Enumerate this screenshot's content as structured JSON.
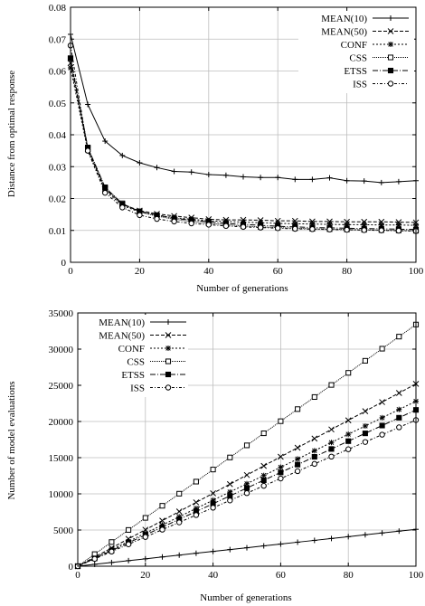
{
  "chart_data": [
    {
      "type": "line",
      "title": "",
      "xlabel": "Number of generations",
      "ylabel": "Distance from optimal response",
      "xlim": [
        0,
        100
      ],
      "ylim": [
        0,
        0.08
      ],
      "x_ticks": [
        "0",
        "20",
        "40",
        "60",
        "80",
        "100"
      ],
      "y_ticks": [
        "0",
        "0.01",
        "0.02",
        "0.03",
        "0.04",
        "0.05",
        "0.06",
        "0.07",
        "0.08"
      ],
      "grid": true,
      "legend_position": "top-right",
      "x": [
        0,
        5,
        10,
        15,
        20,
        25,
        30,
        35,
        40,
        45,
        50,
        55,
        60,
        65,
        70,
        75,
        80,
        85,
        90,
        95,
        100
      ],
      "series": [
        {
          "name": "MEAN(10)",
          "marker": "plus",
          "dash": "",
          "values": [
            0.0715,
            0.0495,
            0.038,
            0.0335,
            0.0312,
            0.0297,
            0.0285,
            0.0283,
            0.0275,
            0.0273,
            0.0268,
            0.0266,
            0.0266,
            0.026,
            0.026,
            0.0265,
            0.0256,
            0.0255,
            0.025,
            0.0253,
            0.0256
          ]
        },
        {
          "name": "MEAN(50)",
          "marker": "x",
          "dash": "4,2",
          "values": [
            0.0625,
            0.0355,
            0.023,
            0.0182,
            0.0162,
            0.0152,
            0.0145,
            0.014,
            0.0135,
            0.0133,
            0.0133,
            0.0132,
            0.013,
            0.013,
            0.0128,
            0.0128,
            0.0127,
            0.0127,
            0.0127,
            0.0126,
            0.0125
          ]
        },
        {
          "name": "CONF",
          "marker": "star",
          "dash": "2,2",
          "values": [
            0.061,
            0.035,
            0.0225,
            0.0178,
            0.0158,
            0.0148,
            0.014,
            0.0135,
            0.013,
            0.0128,
            0.0126,
            0.0124,
            0.0122,
            0.0121,
            0.012,
            0.0119,
            0.0118,
            0.0118,
            0.0117,
            0.0117,
            0.0116
          ]
        },
        {
          "name": "CSS",
          "marker": "square",
          "dash": "1,1",
          "values": [
            0.064,
            0.036,
            0.0235,
            0.0185,
            0.0158,
            0.0145,
            0.0135,
            0.0128,
            0.0122,
            0.0118,
            0.0114,
            0.0111,
            0.0109,
            0.0107,
            0.0105,
            0.0104,
            0.0103,
            0.0102,
            0.0101,
            0.01,
            0.0099
          ]
        },
        {
          "name": "ETSS",
          "marker": "filled-square",
          "dash": "6,2,1,2",
          "values": [
            0.064,
            0.036,
            0.0235,
            0.0182,
            0.016,
            0.0148,
            0.0138,
            0.0132,
            0.0127,
            0.0122,
            0.0119,
            0.0116,
            0.0113,
            0.0111,
            0.0109,
            0.0108,
            0.0107,
            0.0106,
            0.0105,
            0.0104,
            0.0103
          ]
        },
        {
          "name": "ISS",
          "marker": "circle",
          "dash": "3,2,1,2",
          "values": [
            0.068,
            0.035,
            0.0218,
            0.0172,
            0.0148,
            0.0136,
            0.0128,
            0.0122,
            0.0118,
            0.0114,
            0.0111,
            0.0109,
            0.0107,
            0.0105,
            0.0104,
            0.0103,
            0.0102,
            0.0101,
            0.01,
            0.0099,
            0.0098
          ]
        }
      ]
    },
    {
      "type": "line",
      "title": "",
      "xlabel": "Number of generations",
      "ylabel": "Number of model evaluations",
      "xlim": [
        0,
        100
      ],
      "ylim": [
        0,
        35000
      ],
      "x_ticks": [
        "0",
        "20",
        "40",
        "60",
        "80",
        "100"
      ],
      "y_ticks": [
        "0",
        "5000",
        "10000",
        "15000",
        "20000",
        "25000",
        "30000",
        "35000"
      ],
      "grid": true,
      "legend_position": "top-left",
      "x": [
        0,
        5,
        10,
        15,
        20,
        25,
        30,
        35,
        40,
        45,
        50,
        55,
        60,
        65,
        70,
        75,
        80,
        85,
        90,
        95,
        100
      ],
      "series": [
        {
          "name": "MEAN(10)",
          "marker": "plus",
          "dash": "",
          "values": [
            0,
            260,
            510,
            770,
            1020,
            1280,
            1530,
            1790,
            2040,
            2300,
            2550,
            2810,
            3060,
            3320,
            3570,
            3830,
            4080,
            4340,
            4590,
            4850,
            5100
          ]
        },
        {
          "name": "MEAN(50)",
          "marker": "x",
          "dash": "4,2",
          "values": [
            0,
            1260,
            2520,
            3780,
            5040,
            6300,
            7560,
            8820,
            10080,
            11340,
            12600,
            13860,
            15120,
            16380,
            17640,
            18900,
            20160,
            21420,
            22680,
            23940,
            25200
          ]
        },
        {
          "name": "CONF",
          "marker": "star",
          "dash": "2,2",
          "values": [
            0,
            1140,
            2280,
            3420,
            4560,
            5700,
            6840,
            7980,
            9120,
            10260,
            11400,
            12540,
            13680,
            14820,
            15960,
            17100,
            18240,
            19380,
            20520,
            21660,
            22800
          ]
        },
        {
          "name": "CSS",
          "marker": "square",
          "dash": "1,1",
          "values": [
            0,
            1670,
            3340,
            5010,
            6680,
            8350,
            10020,
            11690,
            13360,
            15030,
            16700,
            18370,
            20040,
            21710,
            23380,
            25050,
            26720,
            28390,
            30060,
            31730,
            33400
          ]
        },
        {
          "name": "ETSS",
          "marker": "filled-square",
          "dash": "6,2,1,2",
          "values": [
            0,
            1080,
            2160,
            3240,
            4320,
            5400,
            6480,
            7560,
            8640,
            9720,
            10800,
            11880,
            12960,
            14040,
            15120,
            16200,
            17280,
            18360,
            19440,
            20520,
            21600
          ]
        },
        {
          "name": "ISS",
          "marker": "circle",
          "dash": "3,2,1,2",
          "values": [
            0,
            1010,
            2020,
            3030,
            4040,
            5050,
            6060,
            7070,
            8080,
            9090,
            10100,
            11110,
            12120,
            13130,
            14140,
            15150,
            16160,
            17170,
            18180,
            19190,
            20200
          ]
        }
      ]
    }
  ]
}
